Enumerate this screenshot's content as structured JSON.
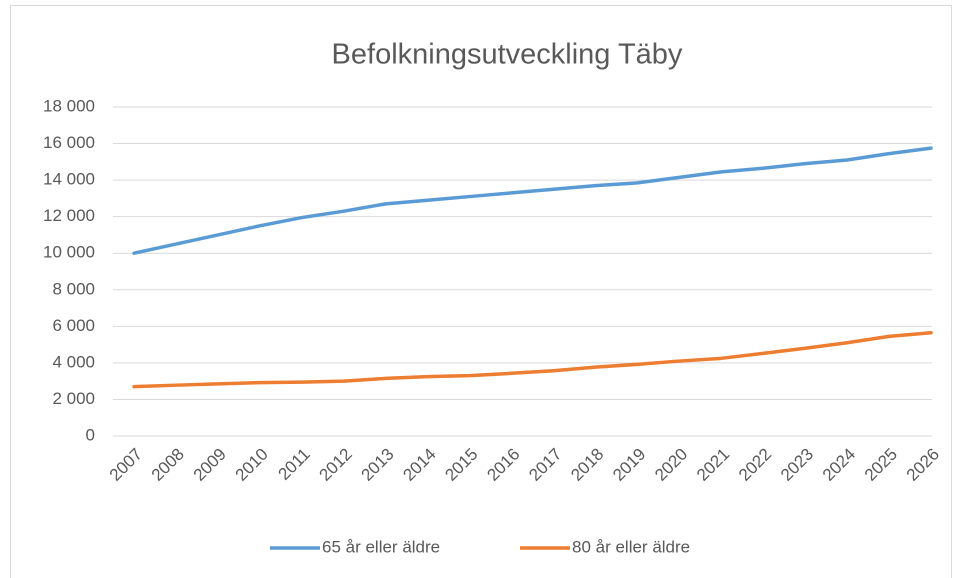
{
  "chart_data": {
    "type": "line",
    "title": "Befolkningsutveckling Täby",
    "categories": [
      "2007",
      "2008",
      "2009",
      "2010",
      "2011",
      "2012",
      "2013",
      "2014",
      "2015",
      "2016",
      "2017",
      "2018",
      "2019",
      "2020",
      "2021",
      "2022",
      "2023",
      "2024",
      "2025",
      "2026"
    ],
    "series": [
      {
        "name": "65 år eller äldre",
        "color": "#5b9bd5",
        "values": [
          10000,
          10500,
          11000,
          11500,
          11950,
          12300,
          12700,
          12900,
          13100,
          13300,
          13500,
          13700,
          13850,
          14150,
          14450,
          14650,
          14900,
          15100,
          15450,
          15750
        ]
      },
      {
        "name": "80 år eller äldre",
        "color": "#ed7d31",
        "values": [
          2700,
          2780,
          2850,
          2920,
          2950,
          3000,
          3150,
          3250,
          3300,
          3430,
          3570,
          3770,
          3920,
          4100,
          4250,
          4520,
          4800,
          5100,
          5450,
          5650
        ]
      }
    ],
    "ylim": [
      0,
      18000
    ],
    "yticks": [
      0,
      {
        "value": 2000,
        "label": "2 000"
      },
      {
        "value": 4000,
        "label": "4 000"
      },
      {
        "value": 6000,
        "label": "6 000"
      },
      {
        "value": 8000,
        "label": "8 000"
      },
      {
        "value": 10000,
        "label": "10 000"
      },
      {
        "value": 12000,
        "label": "12 000"
      },
      {
        "value": 14000,
        "label": "14 000"
      },
      {
        "value": 16000,
        "label": "16 000"
      },
      {
        "value": 18000,
        "label": "18 000"
      }
    ],
    "grid": true,
    "legend": "bottom"
  }
}
